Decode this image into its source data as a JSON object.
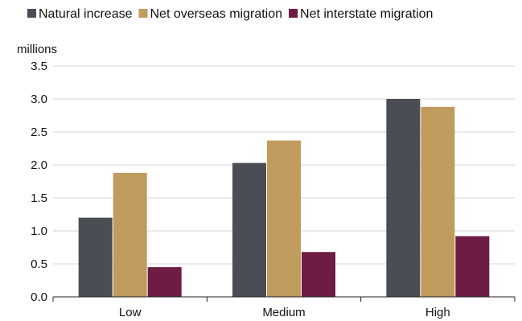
{
  "chart_data": {
    "type": "bar",
    "title": "",
    "xlabel": "",
    "ylabel": "millions",
    "categories": [
      "Low",
      "Medium",
      "High"
    ],
    "series": [
      {
        "name": "Natural increase",
        "values": [
          1.2,
          2.03,
          3.0
        ],
        "color": "#4a4d53"
      },
      {
        "name": "Net overseas migration",
        "values": [
          1.88,
          2.37,
          2.88
        ],
        "color": "#c09b5e"
      },
      {
        "name": "Net interstate migration",
        "values": [
          0.45,
          0.68,
          0.92
        ],
        "color": "#6e1c44"
      }
    ],
    "ylim": [
      0,
      3.5
    ],
    "yticks": [
      "0.0",
      "0.5",
      "1.0",
      "1.5",
      "2.0",
      "2.5",
      "3.0",
      "3.5"
    ],
    "grid": true,
    "legend_position": "top"
  }
}
